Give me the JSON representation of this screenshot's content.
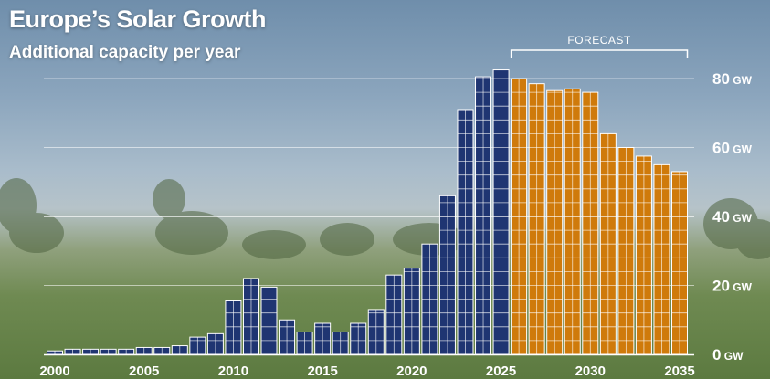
{
  "title": "Europe’s Solar Growth",
  "subtitle": "Additional capacity per year",
  "colors": {
    "historical": "#1f3572",
    "forecast": "#cf7a0b",
    "text": "#ffffff"
  },
  "chart_data": {
    "type": "bar",
    "title": "Europe’s Solar Growth",
    "subtitle": "Additional capacity per year",
    "xlabel": "",
    "ylabel": "",
    "ylim": [
      0,
      85
    ],
    "y_ticks": [
      0,
      20,
      40,
      60,
      80
    ],
    "y_unit": "GW",
    "x_ticks": [
      "2000",
      "2005",
      "2010",
      "2015",
      "2020",
      "2025",
      "2030",
      "2035"
    ],
    "grid": true,
    "annotation": "FORECAST",
    "forecast_start": 2026,
    "categories": [
      2000,
      2001,
      2002,
      2003,
      2004,
      2005,
      2006,
      2007,
      2008,
      2009,
      2010,
      2011,
      2012,
      2013,
      2014,
      2015,
      2016,
      2017,
      2018,
      2019,
      2020,
      2021,
      2022,
      2023,
      2024,
      2025,
      2026,
      2027,
      2028,
      2029,
      2030,
      2031,
      2032,
      2033,
      2034,
      2035
    ],
    "values": [
      1,
      1.5,
      1.5,
      1.5,
      1.5,
      2,
      2,
      2.5,
      5,
      6,
      15.5,
      22,
      19.5,
      10,
      6.5,
      9,
      6.5,
      9,
      13,
      23,
      25,
      32,
      46,
      71,
      80.5,
      82.5,
      80,
      78.5,
      76.5,
      77,
      76,
      64,
      60,
      57.5,
      55,
      53
    ]
  }
}
